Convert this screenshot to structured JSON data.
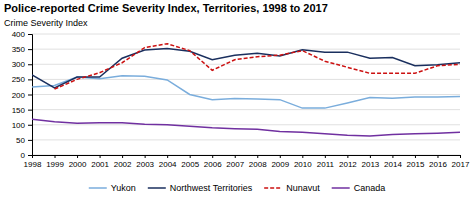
{
  "chart_data": {
    "type": "line",
    "title": "Police-reported Crime Severity Index, Territories,  1998 to 2017",
    "y_label": "Crime Severity Index",
    "x": [
      1998,
      1999,
      2000,
      2001,
      2002,
      2003,
      2004,
      2005,
      2006,
      2007,
      2008,
      2009,
      2010,
      2011,
      2012,
      2013,
      2014,
      2015,
      2016,
      2017
    ],
    "series": [
      {
        "name": "Yukon",
        "color": "#7aaddc",
        "line_style": "solid",
        "values": [
          225,
          230,
          258,
          252,
          262,
          260,
          248,
          200,
          183,
          187,
          185,
          183,
          155,
          155,
          172,
          190,
          188,
          192,
          192,
          193
        ]
      },
      {
        "name": "Northwest Territories",
        "color": "#1a2f5e",
        "line_style": "solid",
        "values": [
          265,
          222,
          258,
          258,
          320,
          347,
          352,
          343,
          315,
          330,
          336,
          327,
          348,
          340,
          340,
          320,
          322,
          295,
          298,
          305
        ]
      },
      {
        "name": "Nunavut",
        "color": "#cc1111",
        "line_style": "dashed",
        "values": [
          null,
          218,
          250,
          272,
          305,
          355,
          368,
          345,
          280,
          315,
          325,
          330,
          345,
          310,
          290,
          270,
          270,
          270,
          295,
          300
        ]
      },
      {
        "name": "Canada",
        "color": "#7030a0",
        "line_style": "solid",
        "values": [
          118,
          110,
          105,
          107,
          107,
          102,
          100,
          95,
          90,
          87,
          85,
          78,
          75,
          70,
          65,
          63,
          68,
          70,
          72,
          75
        ]
      }
    ],
    "xlim": [
      1998,
      2017
    ],
    "xticks": [
      1998,
      1999,
      2000,
      2001,
      2002,
      2003,
      2004,
      2005,
      2006,
      2007,
      2008,
      2009,
      2010,
      2011,
      2012,
      2013,
      2014,
      2015,
      2016,
      2017
    ],
    "ylim": [
      0,
      400
    ],
    "yticks": [
      0,
      50,
      100,
      150,
      200,
      250,
      300,
      350,
      400
    ],
    "grid": true,
    "legend": "bottom"
  }
}
